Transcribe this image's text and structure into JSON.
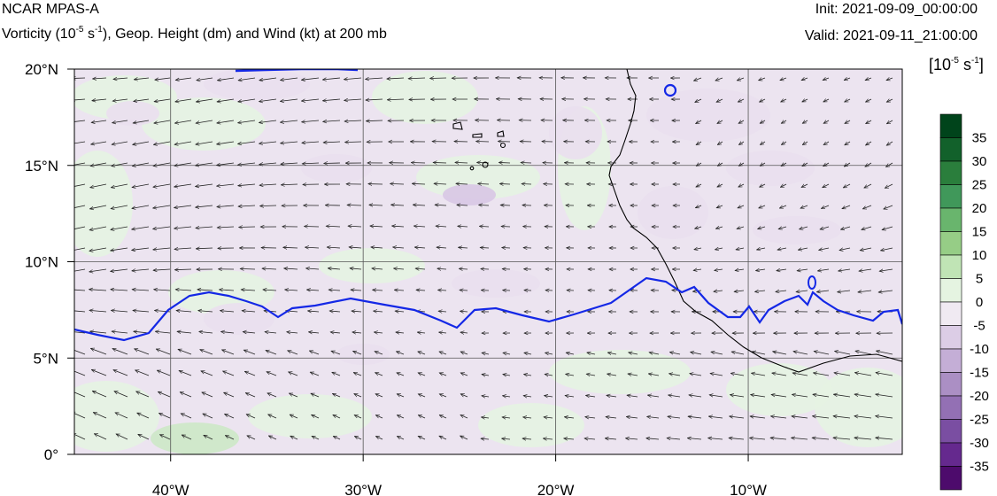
{
  "header": {
    "model": "NCAR MPAS-A",
    "subtitle_pre": "Vorticity (10",
    "subtitle_exp": "-5",
    "subtitle_mid": " s",
    "subtitle_exp2": "-1",
    "subtitle_post": "), Geop. Height (dm) and Wind (kt) at 200 mb",
    "init": "Init: 2021-09-09_00:00:00",
    "valid": "Valid: 2021-09-11_21:00:00"
  },
  "colorbar": {
    "units_pre": "[10",
    "units_exp": "-5",
    "units_mid": " s",
    "units_exp2": "-1",
    "units_post": "]",
    "labels": [
      "35",
      "30",
      "25",
      "20",
      "15",
      "10",
      "5",
      "0",
      "-5",
      "-10",
      "-15",
      "-20",
      "-25",
      "-30",
      "-35"
    ],
    "colors": [
      "#00441b",
      "#12612b",
      "#2a7e3c",
      "#40985a",
      "#69b56d",
      "#96cd86",
      "#c0e4b5",
      "#e5f4e1",
      "#f0eaf2",
      "#dccde6",
      "#c4aed6",
      "#ab8fc4",
      "#9370b4",
      "#7a4ea2",
      "#65298e",
      "#4d0b6c"
    ]
  },
  "map": {
    "lat_labels": [
      "20°N",
      "15°N",
      "10°N",
      "5°N",
      "0°"
    ],
    "lon_labels": [
      "40°W",
      "30°W",
      "20°W",
      "10°W"
    ],
    "lat_values": [
      20,
      15,
      10,
      5,
      0
    ],
    "lon_values": [
      -40,
      -30,
      -20,
      -10
    ],
    "extent": {
      "lon_min": -45,
      "lon_max": -2,
      "lat_min": 0,
      "lat_max": 20
    },
    "contour_color": "#1428e6",
    "coast_color": "#000000",
    "field_green": "#e6f3e2",
    "field_purple": "#eadfee"
  }
}
